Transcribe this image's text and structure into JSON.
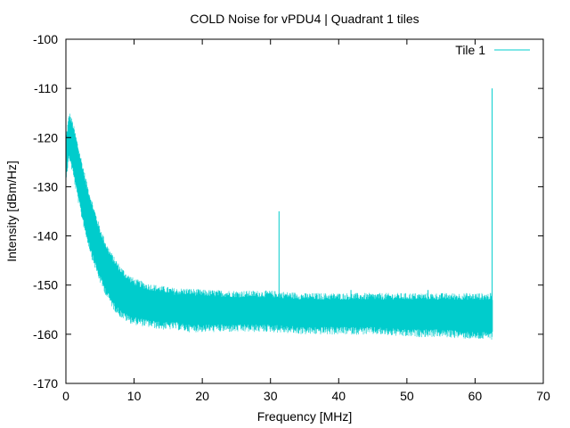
{
  "chart_data": {
    "type": "line",
    "title": "COLD Noise for vPDU4 | Quadrant 1 tiles",
    "xlabel": "Frequency [MHz]",
    "ylabel": "Intensity [dBm/Hz]",
    "xlim": [
      0,
      70
    ],
    "ylim": [
      -170,
      -100
    ],
    "xticks": [
      0,
      10,
      20,
      30,
      40,
      50,
      60,
      70
    ],
    "yticks": [
      -170,
      -160,
      -150,
      -140,
      -130,
      -120,
      -110,
      -100
    ],
    "grid": false,
    "legend_position": "top-right",
    "series": [
      {
        "name": "Tile 1",
        "color": "#00cccc",
        "style": "noise-band",
        "x": [
          0,
          0.5,
          1,
          2,
          3,
          4,
          5,
          6,
          7,
          8,
          9,
          10,
          12,
          14,
          16,
          18,
          20,
          25,
          30,
          35,
          40,
          45,
          50,
          55,
          60,
          62.5
        ],
        "upper": [
          -121,
          -116,
          -118,
          -124,
          -130,
          -135,
          -139.5,
          -143,
          -145.5,
          -147.5,
          -149,
          -150,
          -151,
          -151.5,
          -152,
          -152,
          -152.3,
          -152.5,
          -152.5,
          -153,
          -153,
          -153,
          -153,
          -153,
          -153,
          -153
        ],
        "lower": [
          -127,
          -123,
          -126,
          -133,
          -139,
          -144,
          -148,
          -151,
          -153.5,
          -155,
          -156,
          -156.5,
          -157,
          -157.5,
          -157.5,
          -158,
          -158,
          -158,
          -158,
          -158.5,
          -158.5,
          -158.5,
          -159,
          -159,
          -159.5,
          -159.5
        ],
        "spikes": [
          {
            "x": 31.25,
            "y": -135
          },
          {
            "x": 41.8,
            "y": -151
          },
          {
            "x": 53.1,
            "y": -151
          },
          {
            "x": 62.5,
            "y": -110
          }
        ]
      }
    ]
  }
}
